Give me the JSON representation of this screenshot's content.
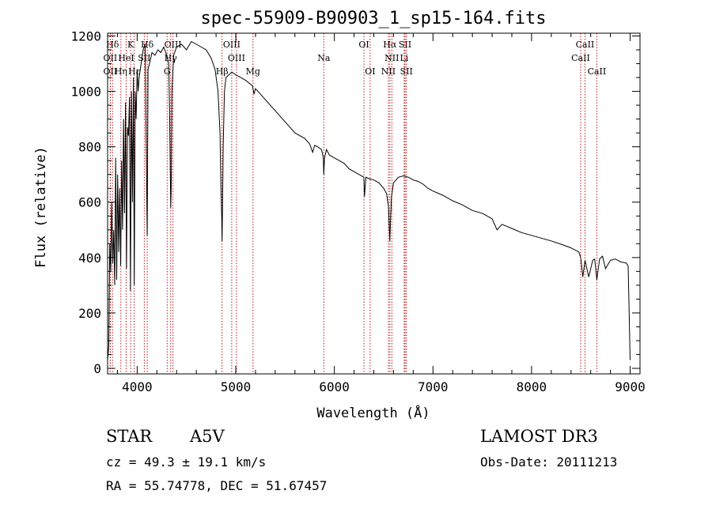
{
  "chart_data": {
    "type": "line",
    "title": "spec-55909-B90903_1_sp15-164.fits",
    "xlabel": "Wavelength (Å)",
    "ylabel": "Flux (relative)",
    "xlim": [
      3700,
      9100
    ],
    "ylim": [
      -20,
      1210
    ],
    "x_ticks": [
      4000,
      5000,
      6000,
      7000,
      8000,
      9000
    ],
    "y_ticks": [
      0,
      200,
      400,
      600,
      800,
      1000,
      1200
    ],
    "grid": false,
    "series": [
      {
        "name": "spectrum",
        "color": "#000000",
        "x": [
          3700,
          3712,
          3722,
          3732,
          3742,
          3752,
          3762,
          3772,
          3782,
          3792,
          3802,
          3812,
          3822,
          3832,
          3842,
          3852,
          3862,
          3872,
          3882,
          3892,
          3902,
          3912,
          3922,
          3932,
          3942,
          3952,
          3962,
          3970,
          3980,
          3990,
          4000,
          4010,
          4020,
          4040,
          4060,
          4080,
          4095,
          4102,
          4110,
          4125,
          4150,
          4180,
          4210,
          4240,
          4270,
          4300,
          4320,
          4330,
          4336,
          4340,
          4345,
          4352,
          4370,
          4400,
          4450,
          4500,
          4550,
          4600,
          4650,
          4700,
          4750,
          4790,
          4820,
          4840,
          4850,
          4858,
          4861,
          4865,
          4872,
          4885,
          4900,
          4930,
          4960,
          5000,
          5050,
          5100,
          5170,
          5185,
          5200,
          5250,
          5300,
          5350,
          5400,
          5450,
          5500,
          5550,
          5600,
          5650,
          5700,
          5750,
          5780,
          5800,
          5830,
          5870,
          5888,
          5893,
          5900,
          5920,
          5950,
          6000,
          6050,
          6100,
          6150,
          6200,
          6250,
          6300,
          6305,
          6320,
          6350,
          6400,
          6450,
          6500,
          6530,
          6550,
          6556,
          6563,
          6570,
          6580,
          6600,
          6650,
          6700,
          6750,
          6800,
          6850,
          6900,
          6950,
          7000,
          7100,
          7200,
          7300,
          7400,
          7500,
          7600,
          7615,
          7650,
          7700,
          7800,
          7900,
          8000,
          8100,
          8200,
          8300,
          8400,
          8480,
          8498,
          8520,
          8542,
          8580,
          8620,
          8640,
          8662,
          8690,
          8720,
          8750,
          8800,
          8850,
          8900,
          8960,
          8980,
          8990,
          9000
        ],
        "y": [
          30,
          80,
          450,
          350,
          600,
          380,
          500,
          300,
          760,
          320,
          700,
          420,
          650,
          370,
          750,
          500,
          900,
          560,
          960,
          360,
          870,
          840,
          980,
          280,
          1000,
          600,
          1050,
          300,
          1000,
          900,
          1080,
          1000,
          1050,
          1100,
          1150,
          1170,
          700,
          480,
          1080,
          1100,
          1140,
          1130,
          1150,
          1140,
          1160,
          1130,
          1100,
          900,
          700,
          580,
          650,
          1000,
          1130,
          1160,
          1170,
          1150,
          1180,
          1170,
          1160,
          1150,
          1120,
          1080,
          1000,
          850,
          650,
          540,
          460,
          560,
          800,
          1000,
          1050,
          1060,
          1070,
          1060,
          1050,
          1040,
          1020,
          990,
          1010,
          990,
          970,
          950,
          930,
          910,
          890,
          870,
          850,
          840,
          830,
          810,
          780,
          805,
          800,
          790,
          760,
          700,
          760,
          790,
          770,
          760,
          750,
          740,
          720,
          710,
          700,
          690,
          620,
          690,
          685,
          680,
          670,
          650,
          630,
          580,
          520,
          460,
          540,
          620,
          670,
          690,
          695,
          690,
          680,
          675,
          665,
          650,
          640,
          625,
          605,
          590,
          570,
          560,
          540,
          528,
          500,
          520,
          505,
          490,
          480,
          470,
          460,
          448,
          435,
          420,
          400,
          330,
          390,
          330,
          390,
          395,
          320,
          395,
          405,
          360,
          390,
          395,
          385,
          380,
          370,
          200,
          30
        ]
      }
    ],
    "line_markers": [
      {
        "label": "Hδ",
        "wavelength": 3750,
        "row": 1
      },
      {
        "label": "K",
        "wavelength": 3934,
        "row": 1
      },
      {
        "label": "Hδ",
        "wavelength": 4102,
        "row": 1
      },
      {
        "label": "OIII",
        "wavelength": 4363,
        "row": 1
      },
      {
        "label": "OIII",
        "wavelength": 4959,
        "row": 1
      },
      {
        "label": "OI",
        "wavelength": 6300,
        "row": 1
      },
      {
        "label": "Hα",
        "wavelength": 6563,
        "row": 1
      },
      {
        "label": "SII",
        "wavelength": 6717,
        "row": 1
      },
      {
        "label": "CaII",
        "wavelength": 8542,
        "row": 1
      },
      {
        "label": "OII",
        "wavelength": 3727,
        "row": 2
      },
      {
        "label": "HeI",
        "wavelength": 3889,
        "row": 2
      },
      {
        "label": "SII",
        "wavelength": 4072,
        "row": 2
      },
      {
        "label": "Hγ",
        "wavelength": 4340,
        "row": 2
      },
      {
        "label": "OIII",
        "wavelength": 5007,
        "row": 2
      },
      {
        "label": "Na",
        "wavelength": 5893,
        "row": 2
      },
      {
        "label": "NII",
        "wavelength": 6583,
        "row": 2
      },
      {
        "label": "Li",
        "wavelength": 6708,
        "row": 2
      },
      {
        "label": "CaII",
        "wavelength": 8498,
        "row": 2
      },
      {
        "label": "OII",
        "wavelength": 3727,
        "row": 3
      },
      {
        "label": "Hε",
        "wavelength": 3970,
        "row": 3
      },
      {
        "label": "Hη",
        "wavelength": 3835,
        "row": 3
      },
      {
        "label": "G",
        "wavelength": 4304,
        "row": 3
      },
      {
        "label": "Hβ",
        "wavelength": 4861,
        "row": 3
      },
      {
        "label": "Mg",
        "wavelength": 5175,
        "row": 3
      },
      {
        "label": "OI",
        "wavelength": 6363,
        "row": 3
      },
      {
        "label": "NII",
        "wavelength": 6548,
        "row": 3
      },
      {
        "label": "SII",
        "wavelength": 6731,
        "row": 3
      },
      {
        "label": "CaII",
        "wavelength": 8662,
        "row": 3
      }
    ],
    "marker_color": "#b00000"
  },
  "info": {
    "object_class": "STAR",
    "subclass": "A5V",
    "survey": "LAMOST DR3",
    "redshift": "cz = 49.3 ± 19.1 km/s",
    "obs_date": "Obs-Date: 20111213",
    "coords": "RA =  55.74778, DEC =  51.67457"
  }
}
